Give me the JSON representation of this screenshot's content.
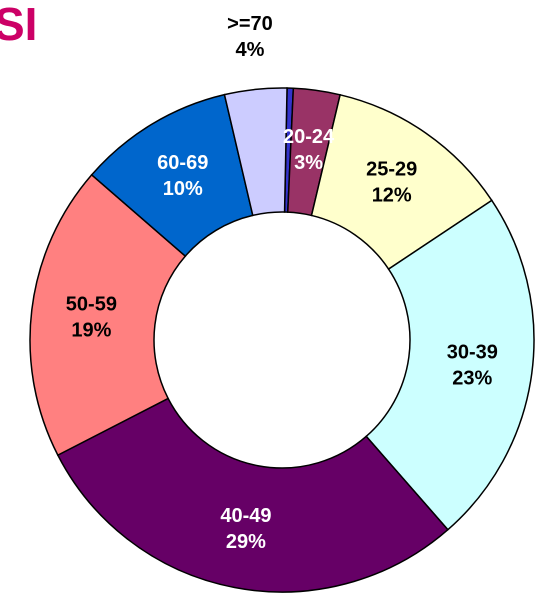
{
  "chart_data": {
    "type": "donut",
    "title": "SI",
    "categories": [
      null,
      "20-24",
      "25-29",
      "30-39",
      "40-49",
      "50-59",
      "60-69",
      ">=70"
    ],
    "values": [
      0.4,
      3,
      12,
      23,
      29,
      19,
      10,
      4
    ],
    "value_labels": [
      null,
      "3%",
      "12%",
      "23%",
      "29%",
      "19%",
      "10%",
      "4%"
    ],
    "colors": [
      "#3333cc",
      "#993366",
      "#ffffcc",
      "#ccffff",
      "#660066",
      "#ff8080",
      "#0066cc",
      "#ccccff"
    ]
  }
}
